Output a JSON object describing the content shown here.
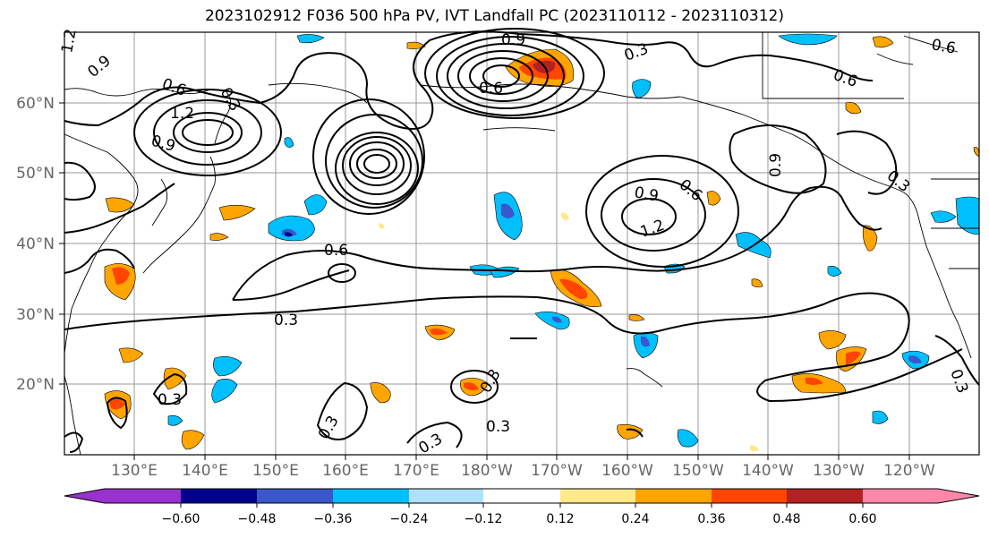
{
  "title": "2023102912 F036 500 hPa PV, IVT Landfall PC (2023110112 - 2023110312)",
  "map": {
    "lat_labels": [
      "60°N",
      "50°N",
      "40°N",
      "30°N",
      "20°N"
    ],
    "lon_labels": [
      "130°E",
      "140°E",
      "150°E",
      "160°E",
      "170°E",
      "180°W",
      "170°W",
      "160°W",
      "150°W",
      "140°W",
      "130°W",
      "120°W"
    ],
    "contour_labels": [
      "1.2",
      "0.9",
      "0.6",
      "0.3",
      "1.2",
      "0.9",
      "0.9",
      "0.6",
      "0.3",
      "0.6",
      "1.2",
      "0.9",
      "0.6",
      "0.9",
      "0.6",
      "0.3",
      "0.6",
      "0.3",
      "0.3",
      "0.3",
      "0.3",
      "0.3",
      "0.3",
      "0.3"
    ],
    "grid": true,
    "contour_color": "#000000"
  },
  "colorbar": {
    "ticks": [
      "−0.60",
      "−0.48",
      "−0.36",
      "−0.24",
      "−0.12",
      "0.12",
      "0.24",
      "0.36",
      "0.48",
      "0.60"
    ],
    "colors": [
      "#9932cc",
      "#00008b",
      "#3a57cc",
      "#00bfff",
      "#b0e0fa",
      "#ffffff",
      "#ffe98a",
      "#ffa500",
      "#ff4500",
      "#b22222",
      "#ff88aa"
    ]
  }
}
